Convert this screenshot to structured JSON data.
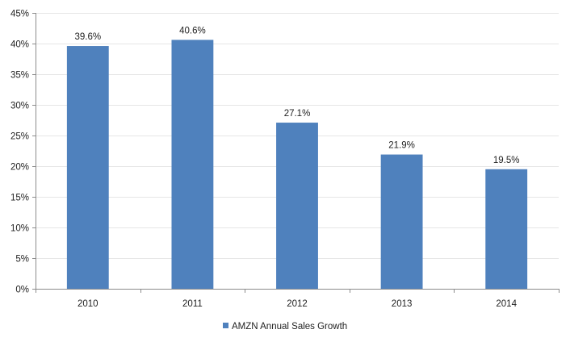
{
  "chart_data": {
    "type": "bar",
    "title": "",
    "xlabel": "",
    "ylabel": "",
    "categories": [
      "2010",
      "2011",
      "2012",
      "2013",
      "2014"
    ],
    "series": [
      {
        "name": "AMZN Annual Sales Growth",
        "values": [
          39.6,
          40.6,
          27.1,
          21.9,
          19.5
        ],
        "labels": [
          "39.6%",
          "40.6%",
          "27.1%",
          "21.9%",
          "19.5%"
        ],
        "color": "#4F81BD"
      }
    ],
    "ylim": [
      0,
      45
    ],
    "yticks": [
      0,
      5,
      10,
      15,
      20,
      25,
      30,
      35,
      40,
      45
    ],
    "ytick_labels": [
      "0%",
      "5%",
      "10%",
      "15%",
      "20%",
      "25%",
      "30%",
      "35%",
      "40%",
      "45%"
    ],
    "grid": true,
    "legend_position": "bottom"
  },
  "colors": {
    "bar": "#4F81BD",
    "grid": "#e6e6e6",
    "axis": "#8c8c8c",
    "text": "#222222"
  }
}
